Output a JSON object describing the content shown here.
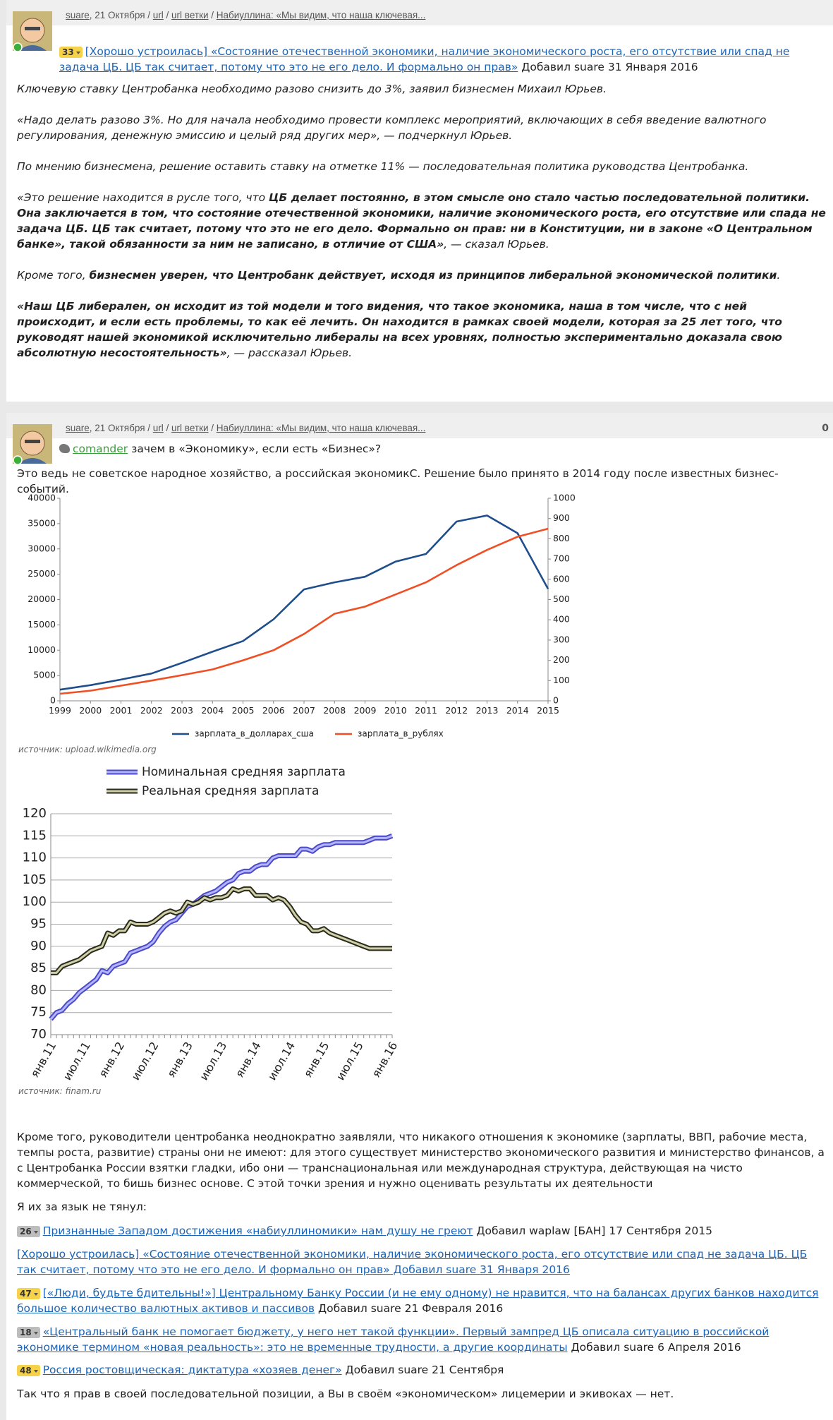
{
  "comments": [
    {
      "header": [
        {
          "text": "suare",
          "link": true
        },
        {
          "text": ", 21 Октября / "
        },
        {
          "text": "url",
          "link": true
        },
        {
          "text": " / "
        },
        {
          "text": "url ветки",
          "link": true
        },
        {
          "text": " / "
        },
        {
          "text": "Набиуллина: «Мы видим, что наша ключевая...",
          "link": true
        }
      ],
      "quote": [
        {
          "badge": "33",
          "badge_color": "#f5d24a"
        },
        {
          "text": "[Хорошо устроилась] «Состояние отечественной экономики, наличие экономического роста, его отсутствие или спад не задача ЦБ. ЦБ так считает, потому что это не его дело. И формально он прав»",
          "link": true
        },
        {
          "text": " Добавил suare 31 Января 2016"
        }
      ],
      "blocks": [
        {
          "segments": [
            {
              "text": "Ключевую ставку Центробанка необходимо разово снизить до 3%, заявил бизнесмен Михаил Юрьев."
            }
          ]
        },
        {
          "segments": [
            {
              "text": "«Надо делать разово 3%. Но для начала необходимо провести комплекс мероприятий, включающих в себя введение валютного регулирования, денежную эмиссию и целый ряд других мер», — подчеркнул Юрьев."
            }
          ]
        },
        {
          "segments": [
            {
              "text": "По мнению бизнесмена, решение оставить ставку на отметке 11% — последовательная политика руководства Центробанка."
            }
          ]
        },
        {
          "segments": [
            {
              "text": "«Это решение находится в русле того, что "
            },
            {
              "text": "ЦБ делает постоянно, в этом смысле оно стало частью последовательной политики. Она заключается в том, что состояние отечественной экономики, наличие экономического роста, его отсутствие или спада не задача ЦБ. ЦБ так считает, потому что это не его дело. Формально он прав: ни в Конституции, ни в законе «О Центральном банке», такой обязанности за ним не записано, в отличие от США»",
              "bold": true
            },
            {
              "text": ", — сказал Юрьев."
            }
          ]
        },
        {
          "segments": [
            {
              "text": "Кроме того, "
            },
            {
              "text": "бизнесмен уверен, что Центробанк действует, исходя из принципов либеральной экономической политики",
              "bold": true
            },
            {
              "text": "."
            }
          ]
        },
        {
          "segments": [
            {
              "text": "«Наш ЦБ либерален, он исходит из той модели и того видения, что такое экономика, наша в том числе, что с ней происходит, и если есть проблемы, то как её лечить. Он находится в рамках своей модели, которая за 25 лет того, что руководят нашей экономикой исключительно либералы на всех уровнях, полностью экспериментально доказала свою абсолютную несостоятельность»",
              "bold": true
            },
            {
              "text": ", — рассказал Юрьев."
            }
          ]
        }
      ]
    },
    {
      "header": [
        {
          "text": "suare",
          "link": true
        },
        {
          "text": ", 21 Октября / "
        },
        {
          "text": "url",
          "link": true
        },
        {
          "text": " / "
        },
        {
          "text": "url ветки",
          "link": true
        },
        {
          "text": " / "
        },
        {
          "text": "Набиуллина: «Мы видим, что наша ключевая...",
          "link": true
        }
      ],
      "score": 0,
      "quote": [
        {
          "user": "comander"
        },
        {
          "text": " зачем в «Экономику», если есть «Бизнес»?"
        }
      ],
      "blocks": [
        {
          "segments": [
            {
              "text": "Это ведь не советское народное хозяйство, а российская экономикС. Решение было принято в 2014 году после известных бизнес-событий."
            }
          ]
        },
        {
          "chart": {
            "type": "line",
            "x": [
              1999,
              2000,
              2001,
              2002,
              2003,
              2004,
              2005,
              2006,
              2007,
              2008,
              2009,
              2010,
              2011,
              2012,
              2013,
              2014,
              2015
            ],
            "xlim": [
              1999,
              2015
            ],
            "xticks": [
              1999,
              2000,
              2001,
              2002,
              2003,
              2004,
              2005,
              2006,
              2007,
              2008,
              2009,
              2010,
              2011,
              2012,
              2013,
              2014,
              2015
            ],
            "ylim": [
              0,
              40000
            ],
            "yticks": [
              0,
              5000,
              10000,
              15000,
              20000,
              25000,
              30000,
              35000,
              40000
            ],
            "y2lim": [
              0,
              1000
            ],
            "y2ticks": [
              0,
              100,
              200,
              300,
              400,
              500,
              600,
              700,
              800,
              900,
              1000
            ],
            "grid": false,
            "legend": "bottom",
            "series": [
              {
                "name": "зарплата_в_долларах_сша",
                "color": "#1f4e8c",
                "values": [
                  2200,
                  3100,
                  4200,
                  5400,
                  7500,
                  9700,
                  11800,
                  16100,
                  22000,
                  23400,
                  24500,
                  27500,
                  29000,
                  35400,
                  36600,
                  33100,
                  22100
                ]
              },
              {
                "name": "зарплата_в_рублях",
                "color": "#f04e23",
                "axis": "y2",
                "values": [
                  35,
                  50,
                  75,
                  100,
                  127,
                  155,
                  200,
                  250,
                  330,
                  430,
                  465,
                  525,
                  585,
                  670,
                  745,
                  810,
                  850
                ]
              }
            ]
          }
        },
        {
          "source": "источник: upload.wikimedia.org"
        },
        {
          "chart": {
            "type": "line",
            "categories": [
              "янв.11",
              null,
              null,
              null,
              null,
              null,
              "июл.11",
              null,
              null,
              null,
              null,
              null,
              "янв.12",
              null,
              null,
              null,
              null,
              null,
              "июл.12",
              null,
              null,
              null,
              null,
              null,
              "янв.13",
              null,
              null,
              null,
              null,
              null,
              "июл.13",
              null,
              null,
              null,
              null,
              null,
              "янв.14",
              null,
              null,
              null,
              null,
              null,
              "июл.14",
              null,
              null,
              null,
              null,
              null,
              "янв.15",
              null,
              null,
              null,
              null,
              null,
              "июл.15",
              null,
              null,
              null,
              null,
              null,
              "янв.16"
            ],
            "ylim": [
              70,
              120
            ],
            "yticks": [
              70,
              75,
              80,
              85,
              90,
              95,
              100,
              105,
              110,
              115,
              120
            ],
            "grid": true,
            "legend": "top",
            "series": [
              {
                "name": "Номинальная средняя зарплата",
                "color": "#b4b4ff",
                "outline": "#4a4ac8",
                "values": [
                  73.5,
                  75,
                  75.5,
                  77,
                  78,
                  79.5,
                  80.5,
                  81.5,
                  82.5,
                  84.5,
                  84,
                  85.5,
                  86,
                  86.5,
                  88.5,
                  89,
                  89.5,
                  90,
                  91,
                  93,
                  94.5,
                  95.5,
                  96,
                  97.5,
                  99,
                  99.5,
                  100.5,
                  101.5,
                  102,
                  102.5,
                  103.5,
                  104.5,
                  105,
                  106.5,
                  107,
                  107,
                  108,
                  108.5,
                  108.5,
                  110,
                  110.5,
                  110.5,
                  110.5,
                  110.5,
                  112,
                  112,
                  111.5,
                  112.5,
                  113,
                  113,
                  113.5,
                  113.5,
                  113.5,
                  113.5,
                  113.5,
                  113.5,
                  114,
                  114.5,
                  114.5,
                  114.5,
                  115
                ]
              },
              {
                "name": "Реальная средняя зарплата",
                "color": "#cfcfa8",
                "outline": "#2a2a1c",
                "values": [
                  84,
                  84,
                  85.5,
                  86,
                  86.5,
                  87,
                  88,
                  89,
                  89.5,
                  90,
                  93,
                  92.5,
                  93.5,
                  93.5,
                  95.5,
                  95,
                  95,
                  95,
                  95.5,
                  96.5,
                  97.5,
                  98,
                  97.5,
                  98,
                  100,
                  99.5,
                  100,
                  101,
                  100.5,
                  101,
                  101,
                  101.5,
                  103,
                  102.5,
                  103,
                  103,
                  101.5,
                  101.5,
                  101.5,
                  100.5,
                  101,
                  100.5,
                  99,
                  97,
                  95.5,
                  95,
                  93.5,
                  93.5,
                  94,
                  93,
                  92.5,
                  92,
                  91.5,
                  91,
                  90.5,
                  90,
                  89.5,
                  89.5,
                  89.5,
                  89.5,
                  89.5
                ]
              }
            ]
          }
        },
        {
          "source": "источник: finam.ru"
        },
        {
          "segments": [
            {
              "text": "Кроме того, руководители центробанка неоднократно заявляли, что никакого отношения к экономике (зарплаты, ВВП, рабочие места, темпы роста, развитие) страны они не имеют: для этого существует министерство экономического развития и министерство финансов, а с Центробанка России взятки гладки, ибо они — транснациональная или международная структура, действующая на чисто коммерческой, то бишь бизнес основе. С этой точки зрения и нужно оценивать результаты их деятельности"
            }
          ]
        },
        {
          "segments": [
            {
              "text": "Я их за язык не тянул:"
            }
          ]
        },
        {
          "segments": [
            {
              "badge": "26",
              "badge_color": "#bdbdbd"
            },
            {
              "text": "Признанные Западом достижения «набиуллиномики» нам душу не греют",
              "link": true
            },
            {
              "text": " Добавил waplaw [БАН] 17 Сентября 2015"
            }
          ]
        },
        {
          "segments": [
            {
              "text": "[Хорошо устроилась] «Состояние отечественной экономики, наличие экономического роста, его отсутствие или спад не задача ЦБ. ЦБ так считает, потому что это не его дело. И формально он прав» Добавил suare 31 Января 2016",
              "link": true
            }
          ]
        },
        {
          "segments": [
            {
              "badge": "47",
              "badge_color": "#f5d24a"
            },
            {
              "text": "[«Люди, будьте бдительны!»] Центральному Банку России (и не ему одному) не нравится, что на балансах других банков находится большое количество валютных активов и пассивов",
              "link": true
            },
            {
              "text": " Добавил suare 21 Февраля 2016"
            }
          ]
        },
        {
          "segments": [
            {
              "badge": "18",
              "badge_color": "#bdbdbd"
            },
            {
              "text": "«Центральный банк не помогает бюджету, у него нет такой функции». Первый зампред ЦБ описала ситуацию в российской экономике термином «новая реальность»: это не временные трудности, а другие координаты",
              "link": true
            },
            {
              "text": " Добавил suare 6 Апреля 2016"
            }
          ]
        },
        {
          "segments": [
            {
              "badge": "48",
              "badge_color": "#f5d24a"
            },
            {
              "text": "Россия ростовщическая: диктатура «хозяев денег»",
              "link": true
            },
            {
              "text": " Добавил suare 21 Сентября"
            }
          ]
        },
        {
          "segments": [
            {
              "text": "Так что я прав в своей последовательной позиции, а Вы в своём «экономическом» лицемерии и экивоках — нет."
            }
          ]
        }
      ]
    }
  ]
}
